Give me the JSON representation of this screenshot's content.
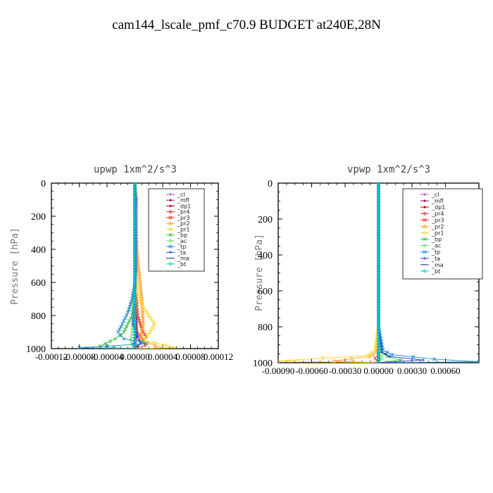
{
  "figure_title": "cam144_lscale_pmf_c70.9  BUDGET at240E,28N",
  "chart_data": [
    {
      "type": "line",
      "title": "upwp   1xm^2/s^3",
      "ylabel": "Pressure [hPa]",
      "xlabel": "",
      "xlim": [
        -0.00012,
        0.00012
      ],
      "ylim": [
        1000,
        0
      ],
      "x_tick_labels": [
        "-0.00012",
        "-0.00008",
        "-0.00004",
        "0.00000",
        "0.00004",
        "0.00008",
        "0.00012"
      ],
      "y_tick_labels": [
        "0",
        "200",
        "400",
        "600",
        "800",
        "1000"
      ],
      "legend_position": "top-right",
      "series": [
        {
          "name": "_cl",
          "color": "#a040c0",
          "marker": "plus",
          "x": [
            0,
            0,
            0,
            0,
            0,
            0,
            0,
            0,
            0,
            0,
            0
          ],
          "y": [
            0,
            100,
            200,
            300,
            400,
            500,
            600,
            700,
            800,
            900,
            1000
          ]
        },
        {
          "name": "_mfl",
          "color": "#8b1a6b",
          "marker": "dot",
          "x": [
            0,
            2e-06,
            0,
            0,
            0,
            2e-06,
            0,
            -2e-06,
            2e-06,
            3e-06,
            0
          ],
          "y": [
            0,
            100,
            200,
            300,
            400,
            500,
            600,
            700,
            800,
            900,
            1000
          ]
        },
        {
          "name": "_dp1",
          "color": "#c0002a",
          "marker": "dot",
          "x": [
            0,
            0,
            0,
            0,
            0,
            0,
            0,
            0,
            0,
            0,
            0
          ],
          "y": [
            0,
            100,
            200,
            300,
            400,
            500,
            600,
            700,
            800,
            900,
            1000
          ]
        },
        {
          "name": "_pr4",
          "color": "#e03030",
          "marker": "diamond",
          "x": [
            0,
            0,
            0,
            0,
            0,
            0,
            0,
            3e-06,
            8e-06,
            1.2e-05,
            1.5e-05,
            0
          ],
          "y": [
            0,
            200,
            400,
            600,
            700,
            800,
            850,
            900,
            930,
            960,
            980,
            1000
          ]
        },
        {
          "name": "_pr3",
          "color": "#ff3020",
          "marker": "x",
          "x": [
            0,
            0,
            0,
            0,
            4e-06,
            1e-05,
            1.6e-05,
            1e-05,
            4e-06,
            0
          ],
          "y": [
            0,
            200,
            400,
            600,
            800,
            880,
            930,
            960,
            985,
            1000
          ]
        },
        {
          "name": "_pr2",
          "color": "#ffa020",
          "marker": "triangle",
          "x": [
            0,
            2e-06,
            2e-06,
            2e-06,
            3e-06,
            5e-06,
            1e-05,
            1.2e-05,
            8e-06,
            4e-05,
            0
          ],
          "y": [
            0,
            100,
            200,
            300,
            400,
            500,
            700,
            850,
            950,
            995,
            1000
          ]
        },
        {
          "name": "_pr1",
          "color": "#ffd21a",
          "marker": "circle",
          "x": [
            0,
            0,
            0,
            2e-06,
            6e-06,
            1.2e-05,
            2e-05,
            2.8e-05,
            2.2e-05,
            1.2e-05,
            6e-05,
            0
          ],
          "y": [
            0,
            200,
            400,
            600,
            700,
            750,
            800,
            850,
            900,
            950,
            995,
            1000
          ]
        },
        {
          "name": "_bp",
          "color": "#40c040",
          "marker": "x",
          "x": [
            0,
            0,
            0,
            0,
            -4e-06,
            -1e-05,
            -1.6e-05,
            -2.8e-05,
            -5e-05,
            -3e-05,
            0
          ],
          "y": [
            0,
            200,
            400,
            600,
            800,
            850,
            900,
            940,
            985,
            995,
            1000
          ]
        },
        {
          "name": "_ac",
          "color": "#70e070",
          "marker": "diamond",
          "x": [
            0,
            0,
            0,
            0,
            -2e-06,
            -4e-06,
            -6e-06,
            -3e-06,
            0
          ],
          "y": [
            0,
            200,
            400,
            600,
            800,
            900,
            950,
            990,
            1000
          ]
        },
        {
          "name": "_tp",
          "color": "#2090d0",
          "marker": "x",
          "x": [
            0,
            0,
            0,
            0,
            -4e-06,
            -1e-05,
            -1.8e-05,
            -2.4e-05,
            -1.6e-05,
            1e-05,
            1.6e-05,
            -4e-05,
            -8e-05,
            0
          ],
          "y": [
            0,
            200,
            400,
            600,
            700,
            780,
            850,
            900,
            940,
            960,
            970,
            985,
            995,
            1000
          ]
        },
        {
          "name": "_ta",
          "color": "#2040e0",
          "marker": "plus",
          "x": [
            0,
            2e-06,
            2e-06,
            2e-06,
            0,
            -3e-06,
            4e-06,
            8e-06,
            0
          ],
          "y": [
            0,
            100,
            300,
            500,
            700,
            850,
            930,
            970,
            1000
          ]
        },
        {
          "name": "_ma",
          "color": "#303090",
          "marker": "dash",
          "x": [
            0,
            0,
            0,
            0,
            0,
            0,
            -2e-06,
            0
          ],
          "y": [
            0,
            200,
            400,
            600,
            800,
            900,
            970,
            1000
          ]
        },
        {
          "name": "_bt",
          "color": "#00d8d8",
          "marker": "diamond",
          "x": [
            0,
            0,
            0,
            0,
            0,
            0,
            0,
            0
          ],
          "y": [
            0,
            200,
            400,
            600,
            800,
            900,
            970,
            1000
          ]
        }
      ]
    },
    {
      "type": "line",
      "title": "vpwp   1xm^2/s^3",
      "ylabel": "Pressure [hPa]",
      "xlabel": "",
      "xlim": [
        -0.0009,
        0.0009
      ],
      "ylim": [
        1000,
        0
      ],
      "x_tick_labels": [
        "-0.00090",
        "-0.00060",
        "-0.00030",
        "0.00000",
        "0.00030",
        "0.00060"
      ],
      "y_tick_labels": [
        "0",
        "200",
        "400",
        "600",
        "800",
        "1000"
      ],
      "legend_position": "top-right",
      "series": [
        {
          "name": "_cl",
          "color": "#a040c0",
          "marker": "plus",
          "x": [
            0,
            0,
            0,
            0,
            0,
            0,
            0,
            0,
            0,
            0,
            0
          ],
          "y": [
            0,
            100,
            200,
            300,
            400,
            500,
            600,
            700,
            800,
            900,
            1000
          ]
        },
        {
          "name": "_mfl",
          "color": "#8b1a6b",
          "marker": "dot",
          "x": [
            0,
            0,
            0,
            0,
            0,
            0,
            0,
            0,
            0,
            0,
            0
          ],
          "y": [
            0,
            100,
            200,
            300,
            400,
            500,
            600,
            700,
            800,
            900,
            1000
          ]
        },
        {
          "name": "_dp1",
          "color": "#c0002a",
          "marker": "dot",
          "x": [
            0,
            0,
            0,
            0,
            0,
            0,
            0,
            0,
            0
          ],
          "y": [
            0,
            200,
            400,
            600,
            800,
            900,
            950,
            980,
            1000
          ]
        },
        {
          "name": "_pr4",
          "color": "#e03030",
          "marker": "diamond",
          "x": [
            0,
            0,
            0,
            0,
            0,
            0,
            0
          ],
          "y": [
            0,
            200,
            400,
            600,
            800,
            950,
            1000
          ]
        },
        {
          "name": "_pr3",
          "color": "#ff3020",
          "marker": "x",
          "x": [
            0,
            0,
            0,
            0,
            0,
            2e-05,
            -3e-05,
            0
          ],
          "y": [
            0,
            200,
            400,
            600,
            800,
            940,
            975,
            1000
          ]
        },
        {
          "name": "_pr2",
          "color": "#ffa020",
          "marker": "triangle",
          "x": [
            0,
            0,
            0,
            0,
            0,
            -2e-05,
            -8e-05,
            -0.0004,
            0
          ],
          "y": [
            0,
            200,
            400,
            600,
            800,
            940,
            965,
            990,
            1000
          ]
        },
        {
          "name": "_pr1",
          "color": "#ffd21a",
          "marker": "circle",
          "x": [
            0,
            0,
            0,
            0,
            0,
            -3e-05,
            -0.0001,
            -0.0009,
            0
          ],
          "y": [
            0,
            200,
            400,
            600,
            800,
            930,
            960,
            990,
            1000
          ]
        },
        {
          "name": "_bp",
          "color": "#40c040",
          "marker": "x",
          "x": [
            0,
            0,
            0,
            0,
            0,
            2e-05,
            8e-05,
            0.0002,
            0
          ],
          "y": [
            0,
            200,
            400,
            600,
            800,
            940,
            965,
            985,
            1000
          ]
        },
        {
          "name": "_ac",
          "color": "#70e070",
          "marker": "diamond",
          "x": [
            0,
            0,
            0,
            0,
            0,
            1e-05,
            3e-05,
            0
          ],
          "y": [
            0,
            200,
            400,
            600,
            800,
            950,
            980,
            1000
          ]
        },
        {
          "name": "_tp",
          "color": "#2090d0",
          "marker": "x",
          "x": [
            0,
            0,
            0,
            0,
            0,
            4e-05,
            0.00012,
            0.0005,
            0.0009,
            0
          ],
          "y": [
            0,
            200,
            400,
            600,
            800,
            930,
            955,
            980,
            995,
            1000
          ]
        },
        {
          "name": "_ta",
          "color": "#2040e0",
          "marker": "plus",
          "x": [
            0,
            0,
            0,
            0,
            0,
            3e-05,
            0.0001,
            0.0004,
            0
          ],
          "y": [
            0,
            200,
            400,
            600,
            800,
            940,
            965,
            985,
            1000
          ]
        },
        {
          "name": "_ma",
          "color": "#303090",
          "marker": "dash",
          "x": [
            0,
            0,
            0,
            0,
            0,
            0,
            0
          ],
          "y": [
            0,
            200,
            400,
            600,
            800,
            960,
            1000
          ]
        },
        {
          "name": "_bt",
          "color": "#00d8d8",
          "marker": "diamond",
          "x": [
            0,
            0,
            0,
            0,
            0,
            0,
            0
          ],
          "y": [
            0,
            200,
            400,
            600,
            800,
            960,
            1000
          ]
        }
      ]
    }
  ]
}
